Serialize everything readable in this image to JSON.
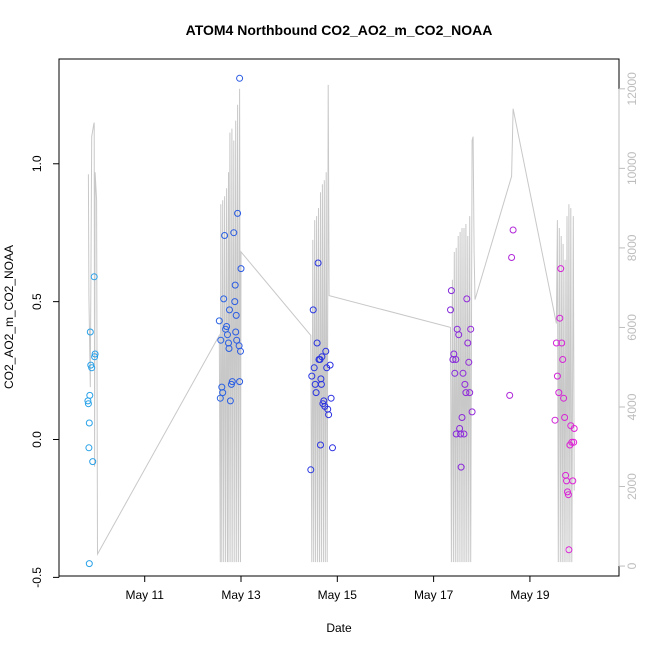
{
  "chart_data": {
    "type": "scatter",
    "title": "ATOM4 Northbound CO2_AO2_m_CO2_NOAA",
    "xlabel": "Date",
    "ylabel": "CO2_AO2_m_CO2_NOAA",
    "x_unit": "May day-of-month (fractional)",
    "xlim": [
      9.22,
      20.85
    ],
    "ylim": [
      -0.495,
      1.38
    ],
    "y2lim": [
      -250,
      12750
    ],
    "x_ticks": [
      {
        "value": 11,
        "label": "May 11"
      },
      {
        "value": 13,
        "label": "May 13"
      },
      {
        "value": 15,
        "label": "May 15"
      },
      {
        "value": 17,
        "label": "May 17"
      },
      {
        "value": 19,
        "label": "May 19"
      }
    ],
    "y_ticks": [
      {
        "value": -0.5,
        "label": "-0.5"
      },
      {
        "value": 0.0,
        "label": "0.0"
      },
      {
        "value": 0.5,
        "label": "0.5"
      },
      {
        "value": 1.0,
        "label": "1.0"
      }
    ],
    "y2_ticks": [
      {
        "value": 0,
        "label": "0"
      },
      {
        "value": 2000,
        "label": "2000"
      },
      {
        "value": 4000,
        "label": "4000"
      },
      {
        "value": 6000,
        "label": "6000"
      },
      {
        "value": 8000,
        "label": "8000"
      },
      {
        "value": 10000,
        "label": "10000"
      },
      {
        "value": 12000,
        "label": "12000"
      }
    ],
    "grid": false,
    "colors": {
      "points_start": "#29a3e8",
      "points_mid": "#2a2ee0",
      "points_end": "#e023d6",
      "altitude_line": "#c8c8c8",
      "right_axis": "#bdbdbd"
    },
    "series": [
      {
        "type": "scatter",
        "points": [
          [
            9.85,
            -0.45
          ],
          [
            9.84,
            -0.03
          ],
          [
            9.87,
            0.39
          ],
          [
            9.88,
            0.27
          ],
          [
            9.9,
            0.26
          ],
          [
            9.86,
            0.16
          ],
          [
            9.83,
            0.13
          ],
          [
            9.82,
            0.14
          ],
          [
            9.85,
            0.06
          ],
          [
            9.92,
            -0.08
          ],
          [
            9.95,
            0.59
          ],
          [
            9.96,
            0.3
          ],
          [
            9.97,
            0.31
          ],
          [
            12.55,
            0.43
          ],
          [
            12.58,
            0.36
          ],
          [
            12.6,
            0.19
          ],
          [
            12.62,
            0.17
          ],
          [
            12.57,
            0.15
          ],
          [
            12.64,
            0.51
          ],
          [
            12.66,
            0.74
          ],
          [
            12.68,
            0.4
          ],
          [
            12.7,
            0.41
          ],
          [
            12.72,
            0.38
          ],
          [
            12.74,
            0.35
          ],
          [
            12.75,
            0.33
          ],
          [
            12.78,
            0.14
          ],
          [
            12.8,
            0.2
          ],
          [
            12.82,
            0.21
          ],
          [
            12.76,
            0.47
          ],
          [
            12.85,
            0.75
          ],
          [
            12.87,
            0.5
          ],
          [
            12.88,
            0.56
          ],
          [
            12.89,
            0.39
          ],
          [
            12.9,
            0.45
          ],
          [
            12.91,
            0.36
          ],
          [
            12.93,
            0.82
          ],
          [
            12.96,
            0.34
          ],
          [
            12.97,
            0.21
          ],
          [
            12.99,
            0.32
          ],
          [
            13.0,
            0.62
          ],
          [
            12.97,
            1.31
          ],
          [
            14.45,
            -0.11
          ],
          [
            14.47,
            0.23
          ],
          [
            14.5,
            0.47
          ],
          [
            14.52,
            0.26
          ],
          [
            14.54,
            0.2
          ],
          [
            14.56,
            0.17
          ],
          [
            14.58,
            0.35
          ],
          [
            14.6,
            0.64
          ],
          [
            14.62,
            0.29
          ],
          [
            14.64,
            0.29
          ],
          [
            14.66,
            0.22
          ],
          [
            14.67,
            0.2
          ],
          [
            14.68,
            0.3
          ],
          [
            14.7,
            0.13
          ],
          [
            14.72,
            0.14
          ],
          [
            14.74,
            0.12
          ],
          [
            14.76,
            0.32
          ],
          [
            14.78,
            0.26
          ],
          [
            14.8,
            0.11
          ],
          [
            14.82,
            0.09
          ],
          [
            14.85,
            0.27
          ],
          [
            14.87,
            0.15
          ],
          [
            14.9,
            -0.03
          ],
          [
            14.65,
            -0.02
          ],
          [
            17.35,
            0.47
          ],
          [
            17.37,
            0.54
          ],
          [
            17.4,
            0.29
          ],
          [
            17.42,
            0.31
          ],
          [
            17.44,
            0.24
          ],
          [
            17.46,
            0.29
          ],
          [
            17.47,
            0.02
          ],
          [
            17.49,
            0.4
          ],
          [
            17.52,
            0.38
          ],
          [
            17.54,
            0.04
          ],
          [
            17.56,
            0.02
          ],
          [
            17.57,
            -0.1
          ],
          [
            17.59,
            0.08
          ],
          [
            17.61,
            0.24
          ],
          [
            17.63,
            0.02
          ],
          [
            17.65,
            0.2
          ],
          [
            17.67,
            0.17
          ],
          [
            17.69,
            0.51
          ],
          [
            17.71,
            0.35
          ],
          [
            17.73,
            0.28
          ],
          [
            17.75,
            0.17
          ],
          [
            17.77,
            0.4
          ],
          [
            17.8,
            0.1
          ],
          [
            18.58,
            0.16
          ],
          [
            18.62,
            0.66
          ],
          [
            18.65,
            0.76
          ],
          [
            19.52,
            0.07
          ],
          [
            19.55,
            0.35
          ],
          [
            19.57,
            0.23
          ],
          [
            19.6,
            0.17
          ],
          [
            19.62,
            0.44
          ],
          [
            19.64,
            0.62
          ],
          [
            19.66,
            0.35
          ],
          [
            19.68,
            0.29
          ],
          [
            19.7,
            0.15
          ],
          [
            19.72,
            0.08
          ],
          [
            19.74,
            -0.13
          ],
          [
            19.76,
            -0.15
          ],
          [
            19.78,
            -0.19
          ],
          [
            19.8,
            -0.2
          ],
          [
            19.81,
            -0.4
          ],
          [
            19.83,
            -0.02
          ],
          [
            19.85,
            0.05
          ],
          [
            19.87,
            -0.01
          ],
          [
            19.89,
            -0.15
          ],
          [
            19.91,
            -0.01
          ],
          [
            19.92,
            0.04
          ]
        ]
      },
      {
        "type": "line",
        "axis": "y2",
        "name": "",
        "points": [
          [
            9.83,
            9850
          ],
          [
            9.84,
            6800
          ],
          [
            9.87,
            4500
          ],
          [
            9.9,
            10800
          ],
          [
            9.94,
            11100
          ],
          [
            9.95,
            11150
          ],
          [
            9.96,
            2500
          ],
          [
            9.97,
            9900
          ],
          [
            10.0,
            9200
          ],
          [
            10.02,
            300
          ],
          [
            12.55,
            5800
          ],
          [
            12.57,
            100
          ],
          [
            12.58,
            9100
          ],
          [
            12.6,
            100
          ],
          [
            12.62,
            9200
          ],
          [
            12.64,
            100
          ],
          [
            12.66,
            9300
          ],
          [
            12.68,
            100
          ],
          [
            12.7,
            9500
          ],
          [
            12.72,
            100
          ],
          [
            12.74,
            9900
          ],
          [
            12.75,
            100
          ],
          [
            12.77,
            10900
          ],
          [
            12.79,
            100
          ],
          [
            12.81,
            11000
          ],
          [
            12.83,
            100
          ],
          [
            12.85,
            10700
          ],
          [
            12.87,
            100
          ],
          [
            12.89,
            11200
          ],
          [
            12.91,
            100
          ],
          [
            12.93,
            11600
          ],
          [
            12.95,
            100
          ],
          [
            12.97,
            12000
          ],
          [
            12.99,
            100
          ],
          [
            13.0,
            7900
          ],
          [
            14.45,
            5800
          ],
          [
            14.47,
            100
          ],
          [
            14.49,
            8200
          ],
          [
            14.51,
            100
          ],
          [
            14.53,
            8700
          ],
          [
            14.55,
            100
          ],
          [
            14.57,
            8800
          ],
          [
            14.59,
            100
          ],
          [
            14.61,
            9000
          ],
          [
            14.63,
            100
          ],
          [
            14.65,
            9400
          ],
          [
            14.67,
            100
          ],
          [
            14.69,
            9600
          ],
          [
            14.71,
            100
          ],
          [
            14.73,
            9700
          ],
          [
            14.75,
            100
          ],
          [
            14.77,
            9900
          ],
          [
            14.79,
            100
          ],
          [
            14.81,
            12100
          ],
          [
            14.83,
            6800
          ],
          [
            17.35,
            6000
          ],
          [
            17.37,
            100
          ],
          [
            17.39,
            7200
          ],
          [
            17.41,
            100
          ],
          [
            17.43,
            7900
          ],
          [
            17.45,
            100
          ],
          [
            17.47,
            8000
          ],
          [
            17.49,
            100
          ],
          [
            17.51,
            8300
          ],
          [
            17.53,
            100
          ],
          [
            17.55,
            8400
          ],
          [
            17.57,
            100
          ],
          [
            17.59,
            8500
          ],
          [
            17.61,
            100
          ],
          [
            17.63,
            8500
          ],
          [
            17.65,
            100
          ],
          [
            17.67,
            8600
          ],
          [
            17.69,
            100
          ],
          [
            17.71,
            8300
          ],
          [
            17.73,
            100
          ],
          [
            17.75,
            8800
          ],
          [
            17.77,
            100
          ],
          [
            17.8,
            10700
          ],
          [
            17.82,
            10800
          ],
          [
            17.84,
            7900
          ],
          [
            17.86,
            6700
          ],
          [
            18.62,
            9800
          ],
          [
            18.65,
            11500
          ],
          [
            19.55,
            6100
          ],
          [
            19.57,
            8700
          ],
          [
            19.59,
            100
          ],
          [
            19.61,
            8500
          ],
          [
            19.63,
            100
          ],
          [
            19.65,
            8300
          ],
          [
            19.67,
            100
          ],
          [
            19.69,
            8100
          ],
          [
            19.71,
            100
          ],
          [
            19.73,
            7700
          ],
          [
            19.75,
            100
          ],
          [
            19.77,
            8800
          ],
          [
            19.79,
            100
          ],
          [
            19.81,
            9100
          ],
          [
            19.83,
            100
          ],
          [
            19.85,
            9000
          ],
          [
            19.87,
            100
          ],
          [
            19.9,
            8800
          ],
          [
            19.92,
            1900
          ]
        ]
      }
    ]
  }
}
